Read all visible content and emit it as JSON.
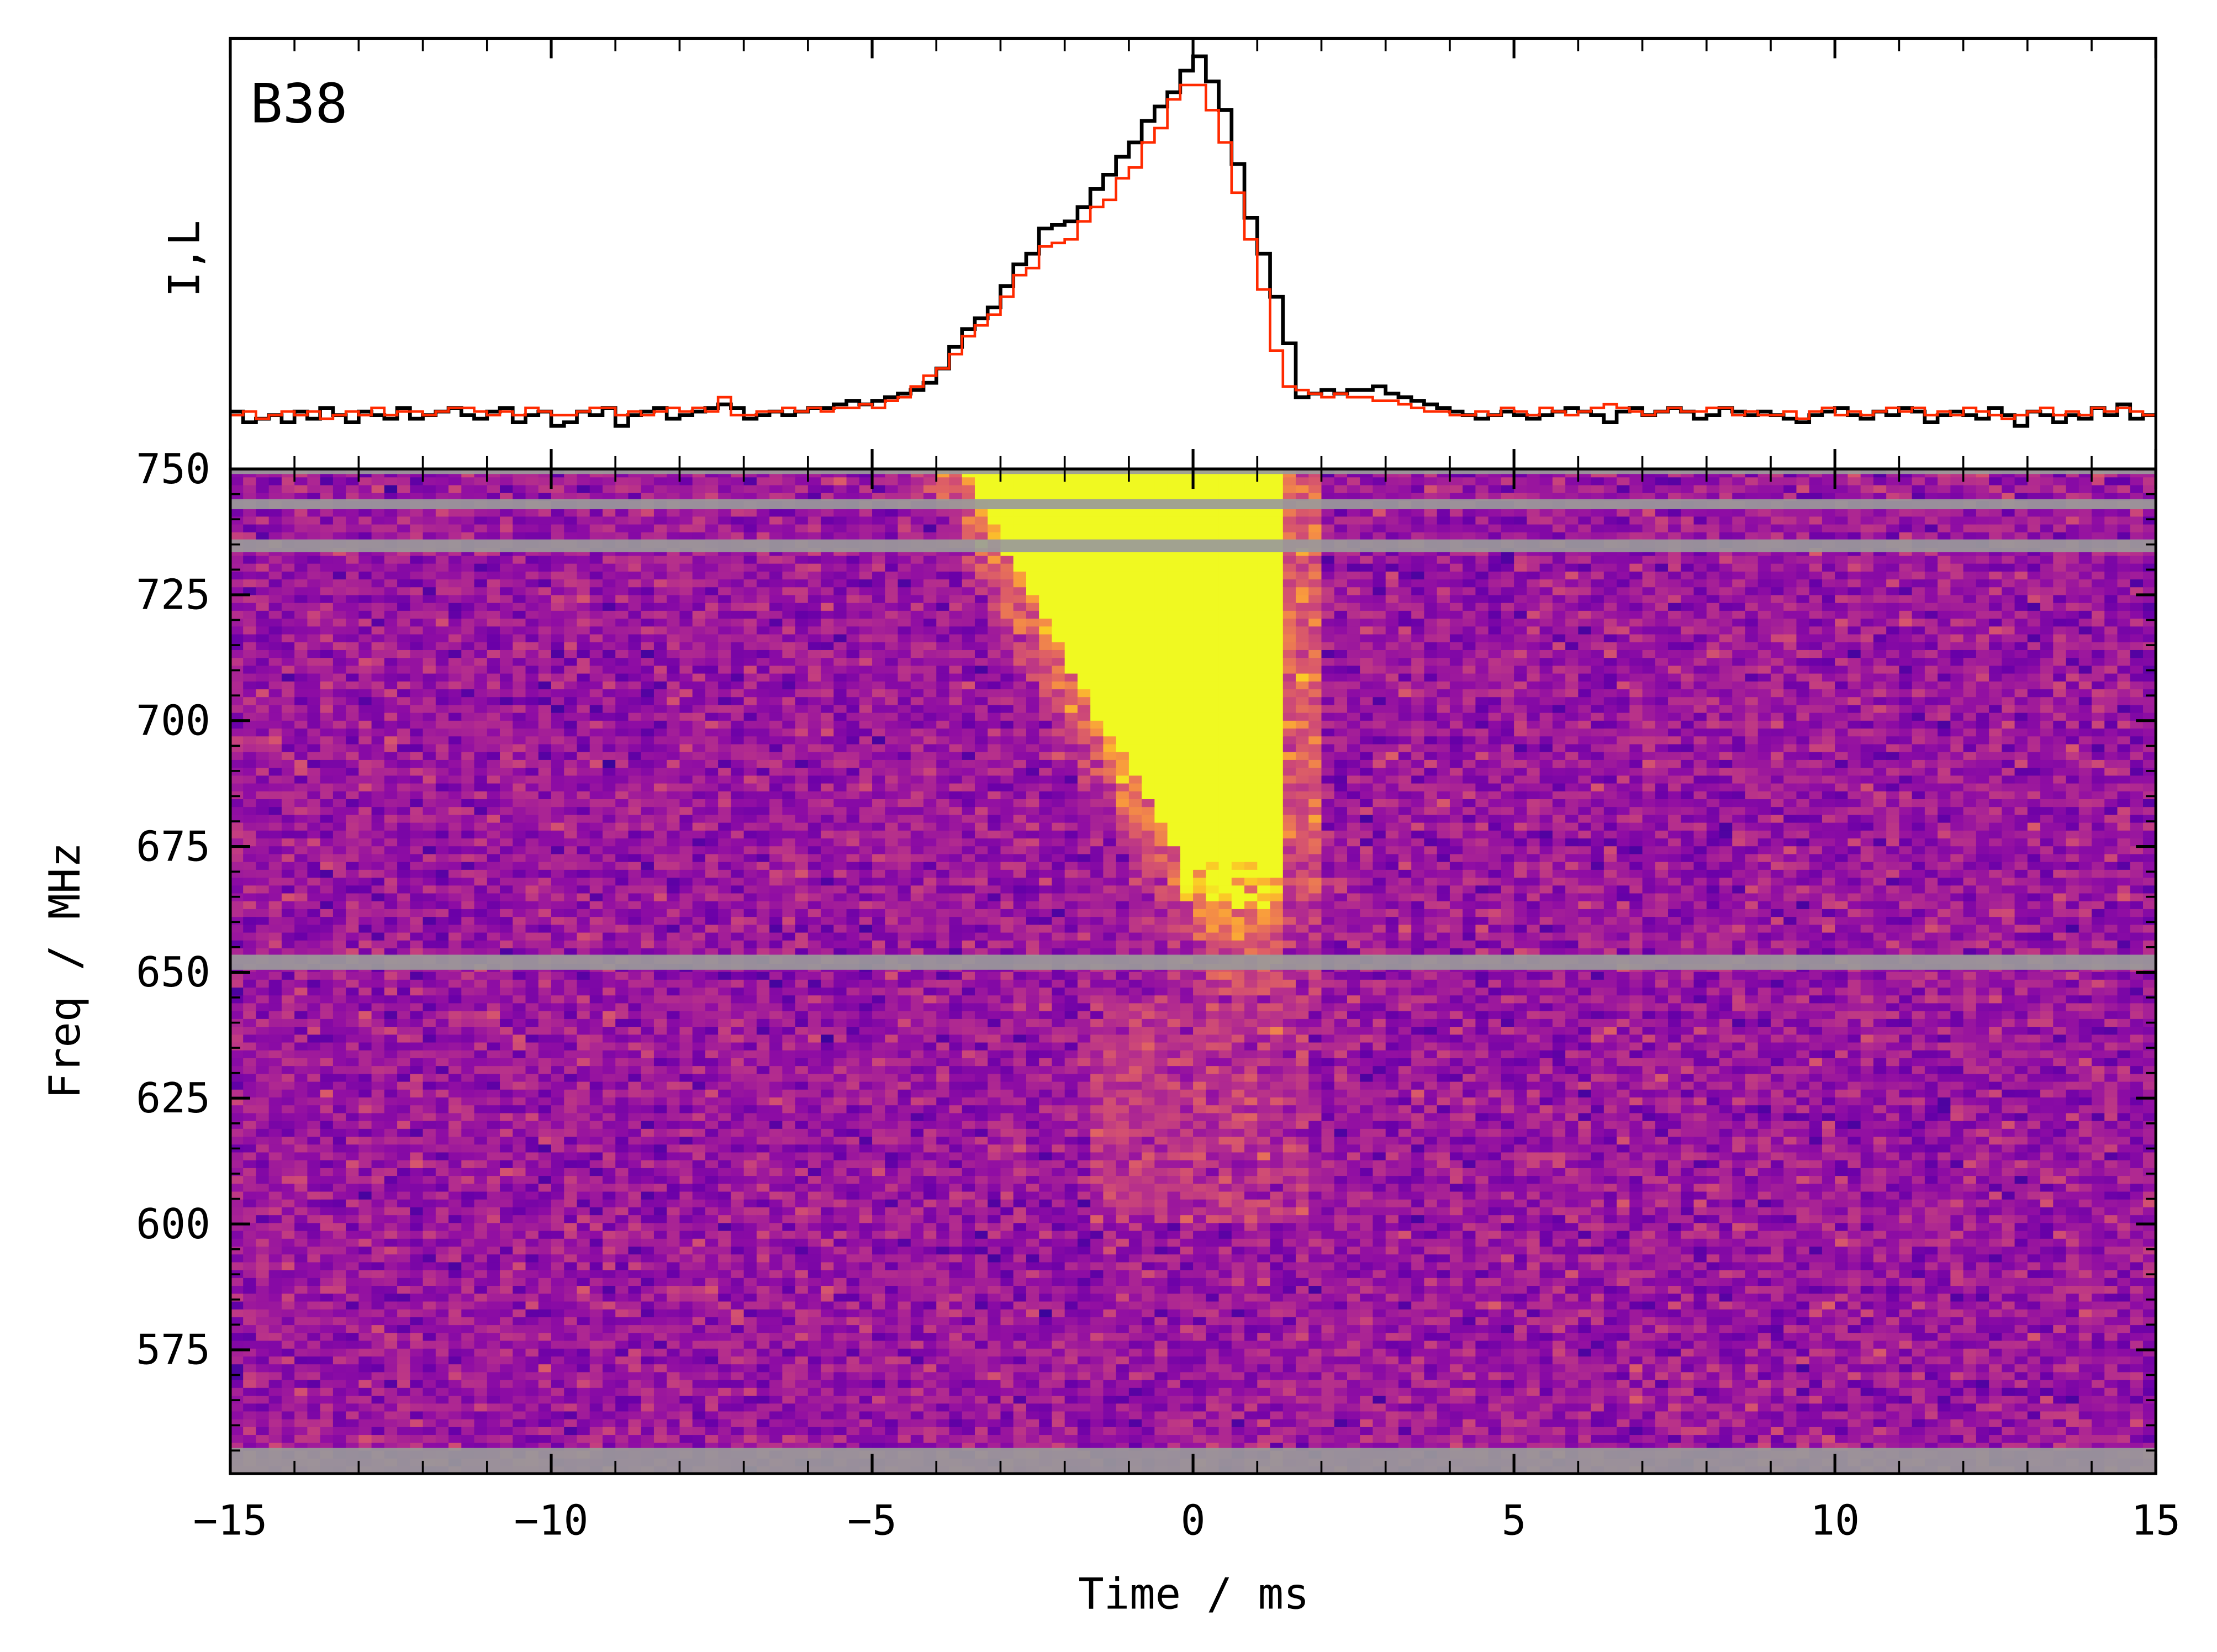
{
  "chart_data": {
    "type": "heatmap",
    "panel_label": "B38",
    "colors": {
      "I": "#000000",
      "L": "#ff2a00",
      "mask": "#9a9a9a",
      "colormap": "plasma"
    },
    "profile": {
      "ylabel": "I,L",
      "time_bin_start": -15,
      "time_bin_width": 0.2,
      "ylim": [
        -0.15,
        1.05
      ],
      "series": [
        {
          "key": "I",
          "values": [
            0.01,
            -0.02,
            -0.01,
            0.0,
            -0.02,
            0.01,
            -0.01,
            0.02,
            0.0,
            -0.02,
            0.01,
            0.0,
            -0.01,
            0.02,
            -0.01,
            0.0,
            0.01,
            0.02,
            0.0,
            -0.01,
            0.01,
            0.02,
            -0.02,
            0.0,
            0.01,
            -0.03,
            -0.02,
            0.01,
            0.0,
            0.02,
            -0.03,
            0.0,
            0.01,
            0.02,
            -0.01,
            0.0,
            0.01,
            0.02,
            0.03,
            0.02,
            -0.01,
            0.0,
            0.01,
            0.0,
            0.01,
            0.02,
            0.02,
            0.03,
            0.04,
            0.03,
            0.04,
            0.05,
            0.06,
            0.07,
            0.09,
            0.13,
            0.19,
            0.24,
            0.27,
            0.3,
            0.36,
            0.42,
            0.45,
            0.52,
            0.53,
            0.54,
            0.58,
            0.63,
            0.67,
            0.72,
            0.76,
            0.82,
            0.86,
            0.9,
            0.96,
            1.0,
            0.93,
            0.85,
            0.7,
            0.55,
            0.45,
            0.33,
            0.2,
            0.05,
            0.06,
            0.07,
            0.06,
            0.07,
            0.07,
            0.08,
            0.06,
            0.05,
            0.04,
            0.03,
            0.02,
            0.01,
            0.0,
            -0.01,
            0.0,
            0.01,
            0.0,
            -0.01,
            0.0,
            0.01,
            0.02,
            0.01,
            0.0,
            -0.02,
            0.01,
            0.02,
            0.0,
            0.01,
            0.02,
            0.01,
            -0.01,
            0.0,
            0.02,
            0.01,
            0.0,
            0.01,
            0.0,
            -0.01,
            -0.02,
            0.0,
            0.01,
            0.02,
            0.0,
            -0.01,
            0.01,
            0.0,
            0.02,
            0.01,
            -0.02,
            0.0,
            0.01,
            0.0,
            -0.01,
            0.02,
            0.0,
            -0.03,
            0.01,
            0.0,
            -0.02,
            0.0,
            -0.01,
            0.02,
            0.0,
            0.03,
            -0.01,
            0.0
          ]
        },
        {
          "key": "L",
          "values": [
            0.0,
            0.01,
            -0.01,
            0.0,
            0.01,
            0.0,
            0.01,
            -0.01,
            0.0,
            0.01,
            0.0,
            0.02,
            0.0,
            0.01,
            0.01,
            0.0,
            0.01,
            0.02,
            0.02,
            0.01,
            0.0,
            0.01,
            0.0,
            0.02,
            0.01,
            0.0,
            0.0,
            0.01,
            0.02,
            0.02,
            0.0,
            0.01,
            0.0,
            0.01,
            0.02,
            0.01,
            0.02,
            0.01,
            0.05,
            0.0,
            0.0,
            0.01,
            0.01,
            0.02,
            0.01,
            0.02,
            0.01,
            0.02,
            0.02,
            0.03,
            0.02,
            0.04,
            0.05,
            0.08,
            0.11,
            0.13,
            0.17,
            0.22,
            0.25,
            0.28,
            0.33,
            0.39,
            0.41,
            0.47,
            0.48,
            0.49,
            0.54,
            0.58,
            0.6,
            0.66,
            0.69,
            0.76,
            0.8,
            0.88,
            0.92,
            0.92,
            0.85,
            0.76,
            0.62,
            0.49,
            0.35,
            0.18,
            0.08,
            0.07,
            0.06,
            0.05,
            0.06,
            0.05,
            0.05,
            0.04,
            0.04,
            0.03,
            0.02,
            0.01,
            0.01,
            0.0,
            0.0,
            0.01,
            0.0,
            0.02,
            0.01,
            0.0,
            0.02,
            0.01,
            0.0,
            0.01,
            0.02,
            0.03,
            0.02,
            0.01,
            0.0,
            0.01,
            0.02,
            0.01,
            0.01,
            0.02,
            0.02,
            0.0,
            0.01,
            0.0,
            0.0,
            0.01,
            -0.01,
            0.01,
            0.02,
            0.0,
            0.01,
            0.0,
            0.01,
            0.02,
            0.01,
            0.02,
            0.0,
            0.01,
            0.0,
            0.02,
            0.01,
            0.0,
            -0.01,
            0.0,
            0.01,
            0.02,
            0.0,
            0.01,
            0.0,
            0.02,
            0.01,
            0.02,
            0.01,
            0.0
          ]
        }
      ]
    },
    "dynamic_spectrum": {
      "xlabel": "Time / ms",
      "ylabel": "Freq / MHz",
      "xlim": [
        -15,
        15
      ],
      "ylim": [
        550.4,
        750
      ],
      "xticks": [
        "−15",
        "−10",
        "−5",
        "0",
        "5",
        "10",
        "15"
      ],
      "xtick_values": [
        -15,
        -10,
        -5,
        0,
        5,
        10,
        15
      ],
      "yticks": [
        "750",
        "725",
        "700",
        "675",
        "650",
        "625",
        "600",
        "575"
      ],
      "ytick_values": [
        750,
        725,
        700,
        675,
        650,
        625,
        600,
        575
      ],
      "masked_channels_mhz": [
        [
          733.5,
          736
        ],
        [
          742,
          744
        ],
        [
          650.5,
          653.5
        ],
        [
          550.4,
          555.5
        ],
        [
          749,
          750
        ]
      ],
      "burst": {
        "onset_at_750_mhz_ms": -3.6,
        "onset_at_675_mhz_ms": -0.3,
        "end_ms": 1.5,
        "lowest_freq_mhz": 645
      }
    }
  }
}
